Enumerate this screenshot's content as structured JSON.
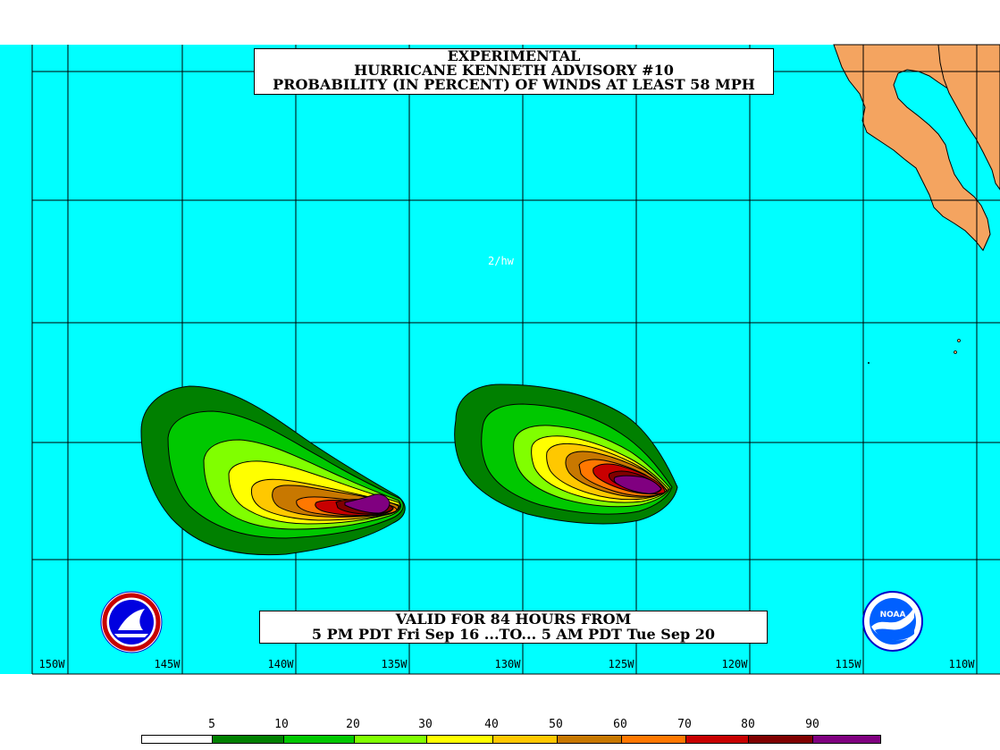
{
  "title": {
    "line1": "EXPERIMENTAL",
    "line2": "HURRICANE KENNETH ADVISORY #10",
    "line3": "PROBABILITY (IN PERCENT) OF WINDS AT LEAST 58 MPH"
  },
  "valid": {
    "line1": "VALID FOR 84 HOURS FROM",
    "line2": "5 PM PDT Fri Sep 16 ...TO... 5 AM PDT Tue Sep 20"
  },
  "initials": "2/hw",
  "longitudes": [
    "150W",
    "145W",
    "140W",
    "135W",
    "130W",
    "125W",
    "120W",
    "115W",
    "110W"
  ],
  "legend": {
    "values": [
      "5",
      "10",
      "20",
      "30",
      "40",
      "50",
      "60",
      "70",
      "80",
      "90"
    ],
    "colors": [
      "#ffffff",
      "#008000",
      "#00c800",
      "#80ff00",
      "#ffff00",
      "#ffc800",
      "#c87800",
      "#ff7800",
      "#c80000",
      "#800000",
      "#800080"
    ]
  },
  "colors": {
    "ocean": "#00ffff",
    "land": "#f4a460",
    "grid": "#000000"
  },
  "logos": {
    "left": "nws-logo",
    "right": "noaa-logo",
    "right_text": "NOAA"
  }
}
